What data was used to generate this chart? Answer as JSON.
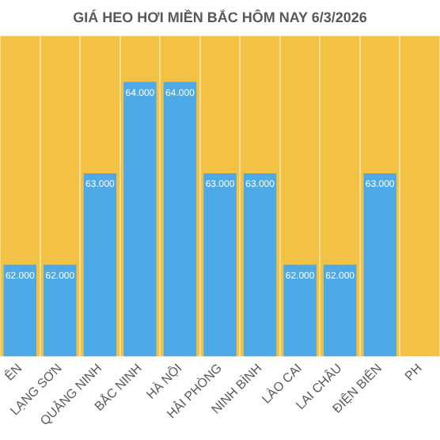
{
  "chart_data": {
    "type": "bar",
    "title": "GIÁ HEO HƠI MIỀN BẮC HÔM NAY 6/3/2026",
    "categories": [
      "ÊN",
      "LẠNG SƠN",
      "QUẢNG NINH",
      "BẮC NINH",
      "HÀ NỘI",
      "HẢI PHÒNG",
      "NINH BÌNH",
      "LÀO CAI",
      "LAI CHÂU",
      "ĐIỆN BIÊN",
      "PH"
    ],
    "values": [
      62000,
      62000,
      63000,
      64000,
      64000,
      63000,
      63000,
      62000,
      62000,
      63000,
      null
    ],
    "value_labels": [
      "62.000",
      "62.000",
      "63.000",
      "64.000",
      "64.000",
      "63.000",
      "63.000",
      "62.000",
      "62.000",
      "63.000",
      null
    ],
    "color": "#4eaae6",
    "ylim": [
      61000,
      64500
    ],
    "grid": "x",
    "tick_labels": "x"
  }
}
